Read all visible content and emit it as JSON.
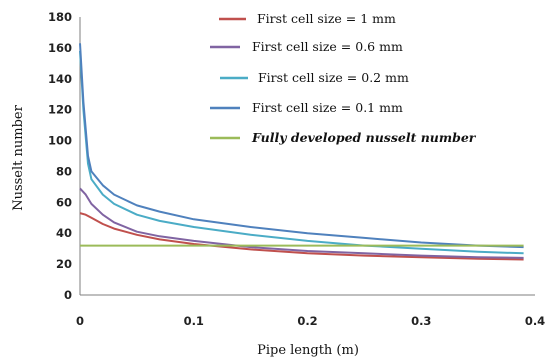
{
  "chart_data": {
    "type": "line",
    "title": "",
    "xlabel": "Pipe length (m)",
    "ylabel": "Nusselt number",
    "xlim": [
      0,
      0.4
    ],
    "ylim": [
      0,
      180
    ],
    "x_ticks": [
      "0",
      "0.1",
      "0.2",
      "0.3",
      "0.4"
    ],
    "y_ticks": [
      "0",
      "20",
      "40",
      "60",
      "80",
      "100",
      "120",
      "140",
      "160",
      "180"
    ],
    "grid": false,
    "legend_position": "top-right",
    "series": [
      {
        "name": "First cell size = 1 mm",
        "color": "#c0504d",
        "points": [
          [
            0.0,
            53
          ],
          [
            0.005,
            52
          ],
          [
            0.01,
            50
          ],
          [
            0.02,
            46
          ],
          [
            0.03,
            43
          ],
          [
            0.05,
            39
          ],
          [
            0.07,
            36
          ],
          [
            0.1,
            33
          ],
          [
            0.15,
            29.5
          ],
          [
            0.2,
            27
          ],
          [
            0.25,
            25.5
          ],
          [
            0.3,
            24.5
          ],
          [
            0.35,
            23.5
          ],
          [
            0.39,
            23
          ]
        ]
      },
      {
        "name": "First cell size = 0.6 mm",
        "color": "#8064a2",
        "points": [
          [
            0.0,
            69
          ],
          [
            0.005,
            65
          ],
          [
            0.01,
            59
          ],
          [
            0.02,
            52
          ],
          [
            0.03,
            47
          ],
          [
            0.05,
            41
          ],
          [
            0.07,
            38
          ],
          [
            0.1,
            35
          ],
          [
            0.15,
            31
          ],
          [
            0.2,
            28.5
          ],
          [
            0.25,
            27
          ],
          [
            0.3,
            25.5
          ],
          [
            0.35,
            24.5
          ],
          [
            0.39,
            24
          ]
        ]
      },
      {
        "name": "First cell size = 0.2 mm",
        "color": "#4bacc6",
        "points": [
          [
            0.0,
            158
          ],
          [
            0.003,
            120
          ],
          [
            0.007,
            85
          ],
          [
            0.01,
            75
          ],
          [
            0.02,
            65
          ],
          [
            0.03,
            59
          ],
          [
            0.05,
            52
          ],
          [
            0.07,
            48
          ],
          [
            0.1,
            44
          ],
          [
            0.15,
            39
          ],
          [
            0.2,
            35
          ],
          [
            0.25,
            32
          ],
          [
            0.3,
            30
          ],
          [
            0.35,
            28
          ],
          [
            0.39,
            27
          ]
        ]
      },
      {
        "name": "First cell size = 0.1 mm",
        "color": "#4f81bd",
        "points": [
          [
            0.0,
            163
          ],
          [
            0.003,
            125
          ],
          [
            0.007,
            90
          ],
          [
            0.01,
            80
          ],
          [
            0.02,
            71
          ],
          [
            0.03,
            65
          ],
          [
            0.05,
            58
          ],
          [
            0.07,
            54
          ],
          [
            0.1,
            49
          ],
          [
            0.15,
            44
          ],
          [
            0.2,
            40
          ],
          [
            0.25,
            37
          ],
          [
            0.3,
            34
          ],
          [
            0.35,
            32
          ],
          [
            0.39,
            31
          ]
        ]
      },
      {
        "name": "Fully developed nusselt number",
        "color": "#9bbb59",
        "bold_label": true,
        "points": [
          [
            0.0,
            32
          ],
          [
            0.39,
            32
          ]
        ]
      }
    ]
  }
}
